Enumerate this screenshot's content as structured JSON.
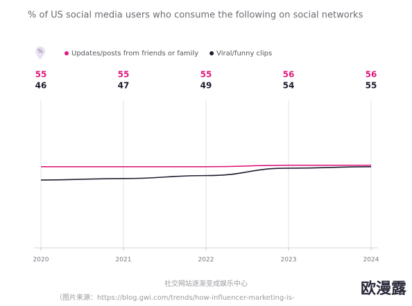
{
  "chart_data": {
    "type": "line",
    "title": "% of US social media users who consume the following on social networks",
    "categories": [
      "2020",
      "2021",
      "2022",
      "2023",
      "2024"
    ],
    "series": [
      {
        "name": "Updates/posts from friends or family",
        "color": "#e0197d",
        "values": [
          55,
          55,
          55,
          56,
          56
        ]
      },
      {
        "name": "Viral/funny clips",
        "color": "#1c1c2e",
        "values": [
          46,
          47,
          49,
          54,
          55
        ]
      }
    ],
    "ylim": [
      0,
      100
    ],
    "grid": true,
    "legend": "top-left",
    "caption": "社交网站逐渐变成娱乐中心",
    "source": "（图片来源：https://blog.gwi.com/trends/how-influencer-marketing-is-",
    "watermark": "欧漫露"
  }
}
